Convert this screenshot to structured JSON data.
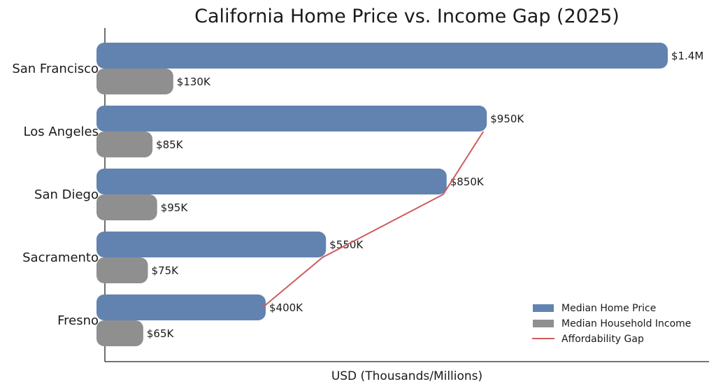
{
  "chart_data": {
    "type": "bar",
    "orientation": "horizontal",
    "title": "California Home Price vs. Income Gap (2025)",
    "xlabel": "USD (Thousands/Millions)",
    "ylabel": "",
    "categories": [
      "San Francisco",
      "Los Angeles",
      "San Diego",
      "Sacramento",
      "Fresno"
    ],
    "series": [
      {
        "name": "Median Home Price",
        "values": [
          1400,
          950,
          850,
          550,
          400
        ],
        "labels": [
          "$1.4M",
          "$950K",
          "$850K",
          "$550K",
          "$400K"
        ],
        "color": "#6283b0"
      },
      {
        "name": "Median Household Income",
        "values": [
          130,
          85,
          95,
          75,
          65
        ],
        "labels": [
          "$130K",
          "$85K",
          "$95K",
          "$75K",
          "$65K"
        ],
        "color": "#8f8f8f"
      }
    ],
    "line": {
      "name": "Affordability Gap",
      "color": "#cd5c5c",
      "categories": [
        "Los Angeles",
        "San Diego",
        "Sacramento",
        "Fresno"
      ]
    },
    "units": "thousands USD",
    "grid": false,
    "legend": "bottom-right"
  }
}
